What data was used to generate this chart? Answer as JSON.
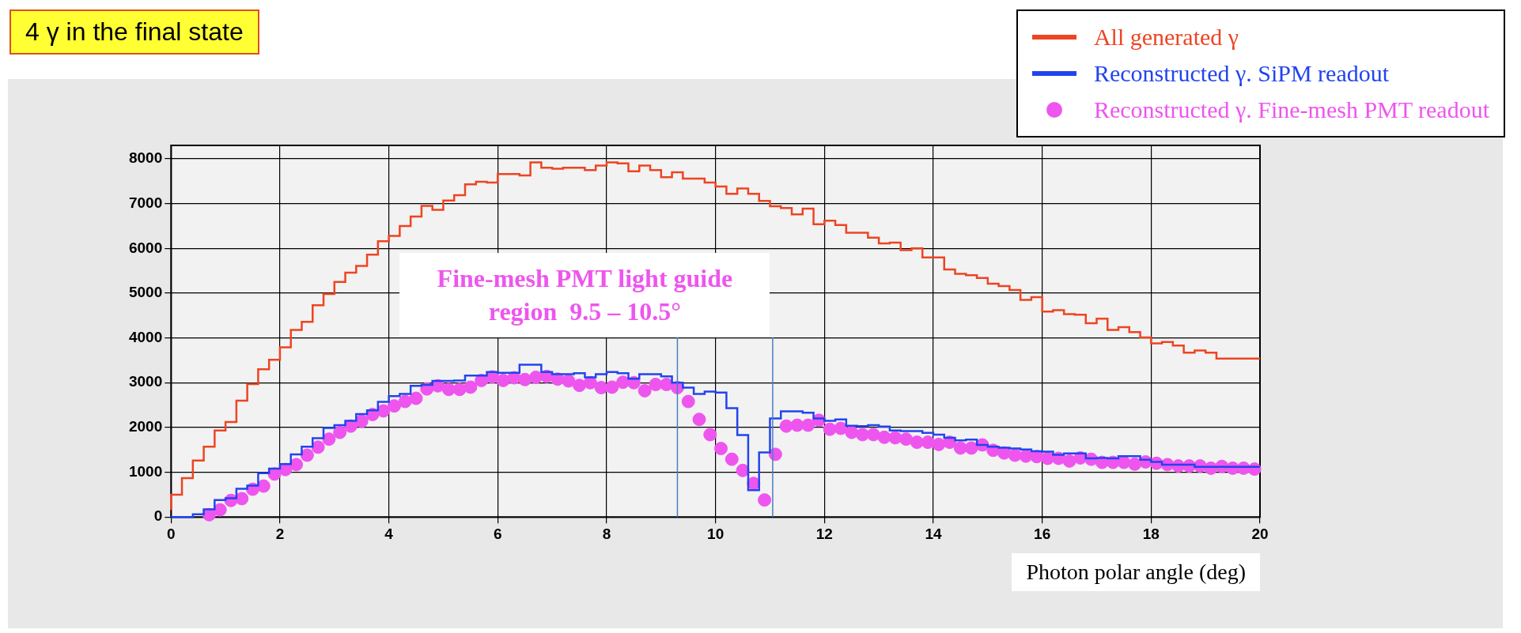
{
  "chart_data": {
    "type": "step",
    "title": "4 γ in the final state",
    "xlabel": "Photon polar angle (deg)",
    "annotations": [
      "Fine-mesh PMT light guide region  9.5 – 10.5°"
    ],
    "x": [
      0,
      0.2,
      0.4,
      0.6,
      0.8,
      1,
      1.2,
      1.4,
      1.6,
      1.8,
      2,
      2.2,
      2.4,
      2.6,
      2.8,
      3,
      3.2,
      3.4,
      3.6,
      3.8,
      4,
      4.2,
      4.4,
      4.6,
      4.8,
      5,
      5.2,
      5.4,
      5.6,
      5.8,
      6,
      6.2,
      6.4,
      6.6,
      6.8,
      7,
      7.2,
      7.4,
      7.6,
      7.8,
      8,
      8.2,
      8.4,
      8.6,
      8.8,
      9,
      9.2,
      9.4,
      9.6,
      9.8,
      10,
      10.2,
      10.4,
      10.6,
      10.8,
      11,
      11.2,
      11.4,
      11.6,
      11.8,
      12,
      12.2,
      12.4,
      12.6,
      12.8,
      13,
      13.2,
      13.4,
      13.6,
      13.8,
      14,
      14.2,
      14.4,
      14.6,
      14.8,
      15,
      15.2,
      15.4,
      15.6,
      15.8,
      16,
      16.2,
      16.4,
      16.6,
      16.8,
      17,
      17.2,
      17.4,
      17.6,
      17.8,
      18,
      18.2,
      18.4,
      18.6,
      18.8,
      19,
      19.2,
      19.4,
      19.6,
      19.8,
      20
    ],
    "series": [
      {
        "name": "All generated γ",
        "color": "#ee4422",
        "values": [
          160,
          500,
          870,
          1260,
          1570,
          1930,
          2120,
          2600,
          2970,
          3300,
          3510,
          3790,
          4180,
          4360,
          4730,
          4980,
          5250,
          5460,
          5610,
          5860,
          6160,
          6280,
          6500,
          6710,
          6950,
          6860,
          7070,
          7190,
          7430,
          7490,
          7470,
          7660,
          7660,
          7630,
          7920,
          7800,
          7780,
          7800,
          7800,
          7750,
          7850,
          7920,
          7900,
          7720,
          7850,
          7750,
          7590,
          7700,
          7560,
          7560,
          7470,
          7380,
          7220,
          7340,
          7220,
          7060,
          6940,
          6900,
          6760,
          6890,
          6540,
          6620,
          6520,
          6350,
          6350,
          6240,
          6110,
          6130,
          5960,
          6000,
          5800,
          5800,
          5530,
          5430,
          5400,
          5340,
          5210,
          5160,
          5070,
          4850,
          4910,
          4590,
          4620,
          4530,
          4520,
          4330,
          4430,
          4180,
          4240,
          4130,
          4010,
          3880,
          3910,
          3830,
          3670,
          3720,
          3670,
          3540,
          3540,
          3540,
          3540
        ]
      },
      {
        "name": "Reconstructed γ. SiPM readout",
        "color": "#2244ee",
        "values": [
          0,
          0,
          0,
          60,
          170,
          380,
          420,
          630,
          700,
          980,
          1080,
          1180,
          1400,
          1570,
          1760,
          1990,
          2050,
          2150,
          2300,
          2380,
          2570,
          2700,
          2750,
          2930,
          2950,
          3040,
          3040,
          3050,
          3160,
          3160,
          3240,
          3220,
          3220,
          3400,
          3400,
          3240,
          3190,
          3190,
          3210,
          3120,
          3190,
          3240,
          3210,
          3090,
          3190,
          3190,
          3140,
          3000,
          2890,
          2750,
          2800,
          2780,
          2430,
          1830,
          600,
          1440,
          2200,
          2360,
          2360,
          2330,
          2200,
          2150,
          2180,
          2040,
          2030,
          2050,
          2020,
          1930,
          1920,
          1920,
          1880,
          1840,
          1770,
          1710,
          1730,
          1610,
          1570,
          1550,
          1530,
          1510,
          1470,
          1460,
          1390,
          1420,
          1420,
          1310,
          1320,
          1310,
          1360,
          1360,
          1280,
          1230,
          1170,
          1170,
          1170,
          1120,
          1120,
          1120,
          1120,
          1120,
          1120
        ]
      },
      {
        "name": "Reconstructed γ. Fine-mesh PMT readout",
        "type": "scatter",
        "marker": "circle",
        "color": "#ee55ee",
        "x": [
          0.7,
          0.9,
          1.1,
          1.3,
          1.5,
          1.7,
          1.9,
          2.1,
          2.3,
          2.5,
          2.7,
          2.9,
          3.1,
          3.3,
          3.5,
          3.7,
          3.9,
          4.1,
          4.3,
          4.5,
          4.7,
          4.9,
          5.1,
          5.3,
          5.5,
          5.7,
          5.9,
          6.1,
          6.3,
          6.5,
          6.7,
          6.9,
          7.1,
          7.3,
          7.5,
          7.7,
          7.9,
          8.1,
          8.3,
          8.5,
          8.7,
          8.9,
          9.1,
          9.3,
          9.5,
          9.7,
          9.9,
          10.1,
          10.3,
          10.5,
          10.7,
          10.9,
          11.1,
          11.3,
          11.5,
          11.7,
          11.9,
          12.1,
          12.3,
          12.5,
          12.7,
          12.9,
          13.1,
          13.3,
          13.5,
          13.7,
          13.9,
          14.1,
          14.3,
          14.5,
          14.7,
          14.9,
          15.1,
          15.3,
          15.5,
          15.7,
          15.9,
          16.1,
          16.3,
          16.5,
          16.7,
          16.9,
          17.1,
          17.3,
          17.5,
          17.7,
          17.9,
          18.1,
          18.3,
          18.5,
          18.7,
          18.9,
          19.1,
          19.3,
          19.5,
          19.7,
          19.9
        ],
        "values": [
          50,
          160,
          370,
          410,
          620,
          690,
          960,
          1060,
          1170,
          1380,
          1560,
          1740,
          1890,
          2030,
          2140,
          2290,
          2370,
          2480,
          2580,
          2650,
          2860,
          2930,
          2850,
          2850,
          2900,
          3050,
          3130,
          3050,
          3110,
          3070,
          3120,
          3140,
          3080,
          3040,
          2940,
          3000,
          2890,
          2900,
          3010,
          3000,
          2820,
          2960,
          2960,
          2890,
          2580,
          2180,
          1840,
          1530,
          1290,
          1040,
          750,
          380,
          1400,
          2030,
          2050,
          2050,
          2160,
          1960,
          1980,
          1890,
          1840,
          1840,
          1780,
          1770,
          1740,
          1670,
          1670,
          1620,
          1670,
          1540,
          1540,
          1610,
          1490,
          1430,
          1380,
          1360,
          1350,
          1310,
          1310,
          1250,
          1320,
          1290,
          1220,
          1220,
          1220,
          1180,
          1230,
          1200,
          1170,
          1140,
          1140,
          1140,
          1090,
          1130,
          1090,
          1090,
          1070
        ]
      }
    ],
    "xlim": [
      0,
      20
    ],
    "xticks": [
      0,
      2,
      4,
      6,
      8,
      10,
      12,
      14,
      16,
      18,
      20
    ],
    "ylim": [
      0,
      8300
    ],
    "yticks": [
      0,
      1000,
      2000,
      3000,
      4000,
      5000,
      6000,
      7000,
      8000
    ],
    "ref_lines": [
      {
        "axis": "x",
        "value": 9.3,
        "color": "#4a7fc0"
      },
      {
        "axis": "x",
        "value": 11.05,
        "color": "#4a7fc0"
      }
    ],
    "grid": true,
    "legend": "top right"
  }
}
